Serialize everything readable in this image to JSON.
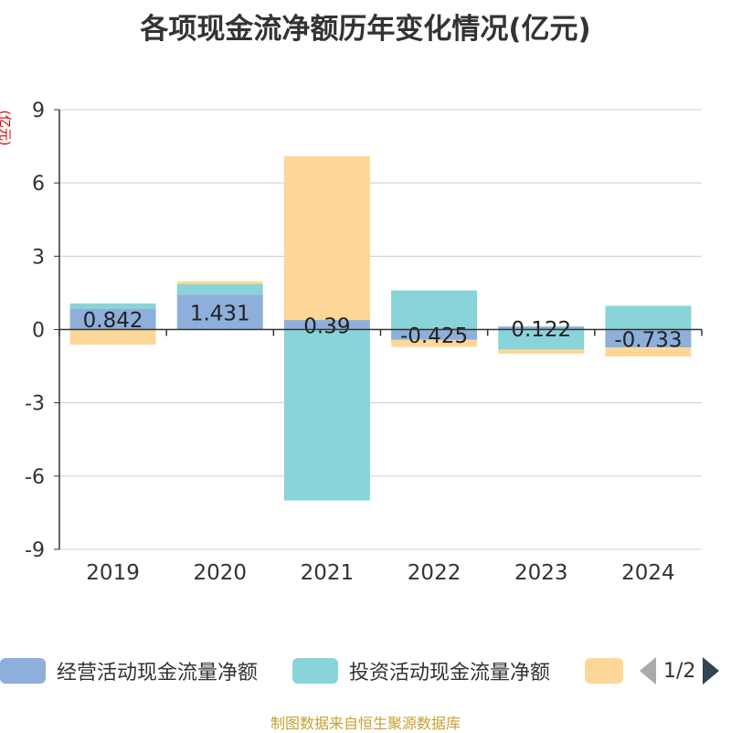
{
  "chart_data": {
    "type": "bar",
    "stacked": true,
    "title": "各项现金流净额历年变化情况(亿元)",
    "ylabel": "(亿元)",
    "ylim": [
      -9,
      9
    ],
    "yticks": [
      9,
      6,
      3,
      0,
      -3,
      -6,
      -9
    ],
    "categories": [
      "2019",
      "2020",
      "2021",
      "2022",
      "2023",
      "2024"
    ],
    "series": [
      {
        "name": "经营活动现金流量净额",
        "color": "#8eafdb",
        "values": [
          0.842,
          1.431,
          0.39,
          -0.425,
          0.122,
          -0.733
        ],
        "labels": [
          "0.842",
          "1.431",
          "0.39",
          "-0.425",
          "0.122",
          "-0.733"
        ]
      },
      {
        "name": "投资活动现金流量净额",
        "color": "#88d4d8",
        "values": [
          0.22,
          0.42,
          -7.0,
          1.6,
          -0.82,
          0.97
        ]
      },
      {
        "name": "",
        "color": "#fdd797",
        "values": [
          -0.62,
          0.12,
          6.7,
          -0.29,
          -0.17,
          -0.37
        ]
      }
    ],
    "legend_position": "bottom",
    "grid": true
  },
  "legend": {
    "page": "1/2"
  },
  "source": "制图数据来自恒生聚源数据库"
}
